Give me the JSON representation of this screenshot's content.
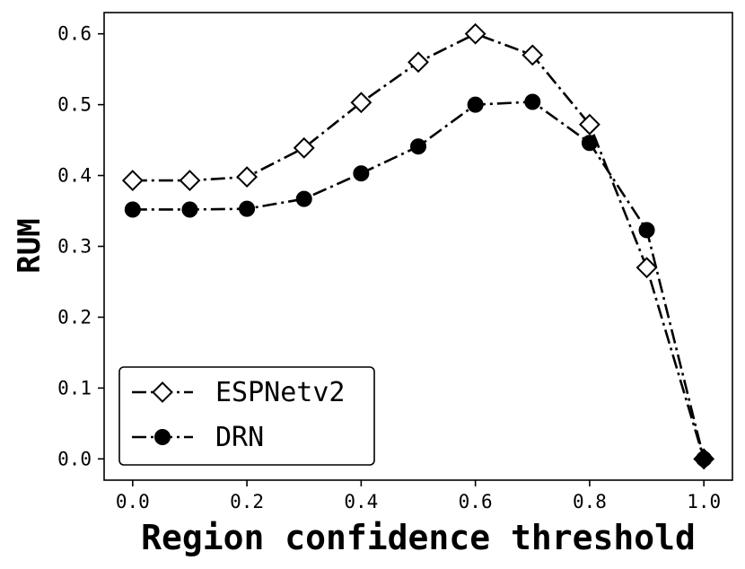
{
  "chart_data": {
    "type": "line",
    "title": "",
    "xlabel": "Region confidence threshold",
    "ylabel": "RUM",
    "xlim": [
      -0.05,
      1.05
    ],
    "ylim": [
      -0.03,
      0.63
    ],
    "xticks": [
      "0.0",
      "0.2",
      "0.4",
      "0.6",
      "0.8",
      "1.0"
    ],
    "yticks": [
      "0.0",
      "0.1",
      "0.2",
      "0.3",
      "0.4",
      "0.5",
      "0.6"
    ],
    "grid": false,
    "legend_position": "lower-left",
    "x": [
      0.0,
      0.1,
      0.2,
      0.3,
      0.4,
      0.5,
      0.6,
      0.7,
      0.8,
      0.9,
      1.0
    ],
    "series": [
      {
        "name": "ESPNetv2",
        "marker": "diamond-open",
        "line_style": "dash-dot",
        "color": "#000000",
        "values": [
          0.393,
          0.393,
          0.398,
          0.439,
          0.503,
          0.56,
          0.6,
          0.57,
          0.472,
          0.27,
          0.0
        ]
      },
      {
        "name": "DRN",
        "marker": "circle-filled",
        "line_style": "dash-dot",
        "color": "#000000",
        "values": [
          0.352,
          0.352,
          0.353,
          0.367,
          0.403,
          0.441,
          0.5,
          0.504,
          0.446,
          0.323,
          0.0
        ]
      }
    ]
  }
}
